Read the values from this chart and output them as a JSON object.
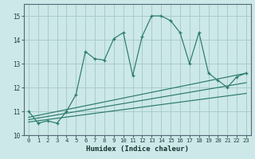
{
  "title": "",
  "xlabel": "Humidex (Indice chaleur)",
  "ylabel": "",
  "background_color": "#cce8e8",
  "grid_color": "#aacccc",
  "line_color": "#2a7a6a",
  "xlim": [
    -0.5,
    23.5
  ],
  "ylim": [
    10.0,
    15.5
  ],
  "yticks": [
    10,
    11,
    12,
    13,
    14,
    15
  ],
  "xticks": [
    0,
    1,
    2,
    3,
    4,
    5,
    6,
    7,
    8,
    9,
    10,
    11,
    12,
    13,
    14,
    15,
    16,
    17,
    18,
    19,
    20,
    21,
    22,
    23
  ],
  "main_x": [
    0,
    1,
    2,
    3,
    4,
    5,
    6,
    7,
    8,
    9,
    10,
    11,
    12,
    13,
    14,
    15,
    16,
    17,
    18,
    19,
    20,
    21,
    22,
    23
  ],
  "main_y": [
    11.0,
    10.5,
    10.6,
    10.5,
    11.0,
    11.7,
    13.5,
    13.2,
    13.15,
    14.05,
    14.3,
    12.5,
    14.15,
    15.0,
    15.0,
    14.8,
    14.3,
    13.0,
    14.3,
    12.6,
    12.3,
    12.0,
    12.45,
    12.6
  ],
  "reg_lines": [
    {
      "x0": 0,
      "y0": 10.75,
      "x1": 23,
      "y1": 12.6
    },
    {
      "x0": 0,
      "y0": 10.65,
      "x1": 23,
      "y1": 12.2
    },
    {
      "x0": 0,
      "y0": 10.55,
      "x1": 23,
      "y1": 11.75
    }
  ]
}
